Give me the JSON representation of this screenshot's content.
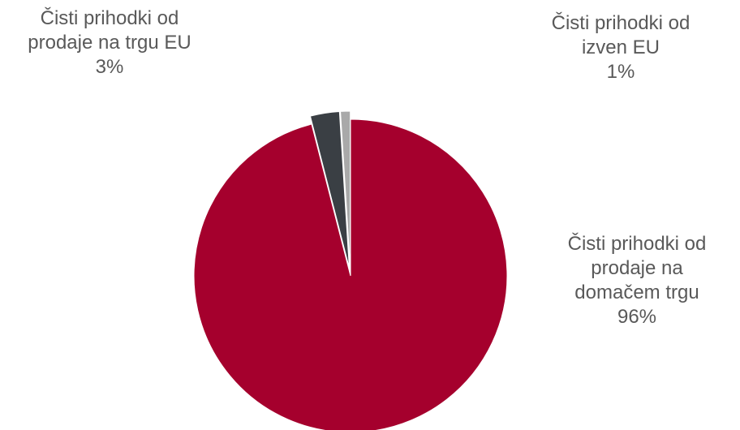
{
  "chart_data": {
    "type": "pie",
    "slices": [
      {
        "name_lines": [
          "Čisti prihodki od",
          "prodaje na",
          "domačem trgu"
        ],
        "percent_label": "96%",
        "value": 96,
        "color": "#a5002d"
      },
      {
        "name_lines": [
          "Čisti prihodki od",
          "prodaje na trgu EU"
        ],
        "percent_label": "3%",
        "value": 3,
        "color": "#3a3f44"
      },
      {
        "name_lines": [
          "Čisti prihodki od",
          "izven EU"
        ],
        "percent_label": "1%",
        "value": 1,
        "color": "#a9a9a9"
      }
    ]
  }
}
